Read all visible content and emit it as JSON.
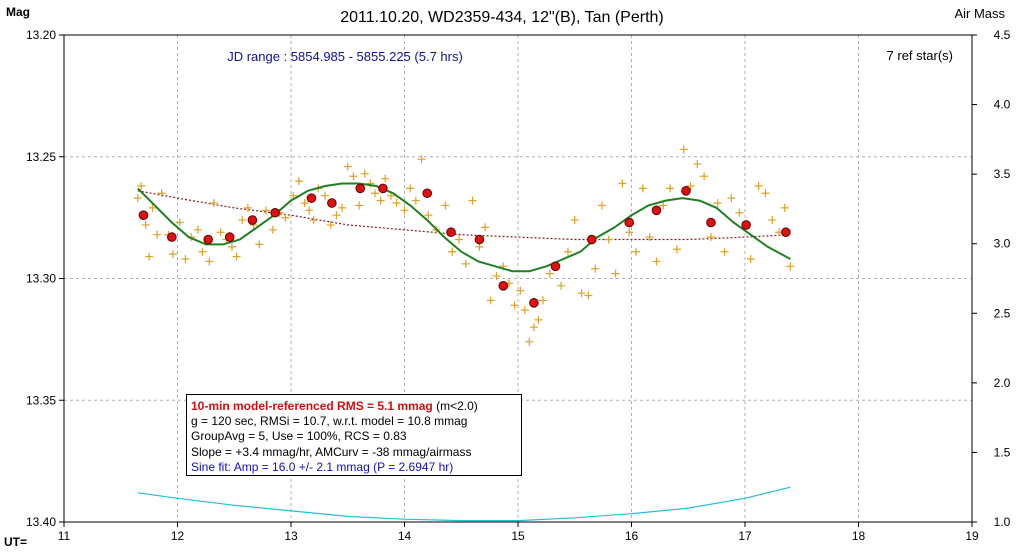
{
  "chart_data": {
    "type": "scatter",
    "title": "2011.10.20, WD2359-434, 12\"(B), Tan (Perth)",
    "ylabel_left": "Mag",
    "ylabel_right": "Air Mass",
    "xlabel": "UT=",
    "jd_range": "JD range : 5854.985 - 5855.225 (5.7 hrs)",
    "ref_stars": "7 ref star(s)",
    "xlim": [
      11,
      19
    ],
    "ylim": [
      13.4,
      13.2
    ],
    "y2lim": [
      1.0,
      4.5
    ],
    "x_ticks": [
      "11",
      "12",
      "13",
      "14",
      "15",
      "16",
      "17",
      "18",
      "19"
    ],
    "y_ticks": [
      "13.20",
      "13.25",
      "13.30",
      "13.35",
      "13.40"
    ],
    "y2_ticks": [
      "1.0",
      "1.5",
      "2.0",
      "2.5",
      "3.0",
      "3.5",
      "4.0",
      "4.5"
    ],
    "grid": true,
    "colors": {
      "raw": "#e0a020",
      "avg_fill": "#e01010",
      "avg_edge": "#600000",
      "sine": "#208020",
      "model": "#8b1a1a",
      "airmass": "#20c0d8",
      "grid": "#b0b0b0",
      "jd_text": "#1010a0"
    },
    "series": [
      {
        "name": "raw",
        "style": "plus",
        "x": [
          11.65,
          11.68,
          11.72,
          11.75,
          11.78,
          11.82,
          11.86,
          11.92,
          11.96,
          12.02,
          12.07,
          12.12,
          12.18,
          12.22,
          12.28,
          12.32,
          12.38,
          12.43,
          12.48,
          12.52,
          12.57,
          12.62,
          12.67,
          12.72,
          12.78,
          12.84,
          12.9,
          12.95,
          13.02,
          13.07,
          13.12,
          13.16,
          13.2,
          13.24,
          13.3,
          13.35,
          13.4,
          13.45,
          13.5,
          13.55,
          13.6,
          13.65,
          13.7,
          13.74,
          13.79,
          13.83,
          13.88,
          13.93,
          14.0,
          14.05,
          14.1,
          14.15,
          14.21,
          14.28,
          14.36,
          14.42,
          14.48,
          14.54,
          14.6,
          14.66,
          14.71,
          14.76,
          14.81,
          14.87,
          14.92,
          14.97,
          15.02,
          15.06,
          15.1,
          15.14,
          15.18,
          15.22,
          15.28,
          15.34,
          15.38,
          15.44,
          15.5,
          15.56,
          15.62,
          15.68,
          15.74,
          15.8,
          15.86,
          15.92,
          15.98,
          16.04,
          16.1,
          16.16,
          16.22,
          16.28,
          16.34,
          16.4,
          16.46,
          16.52,
          16.58,
          16.64,
          16.7,
          16.76,
          16.82,
          16.88,
          16.95,
          17.0,
          17.05,
          17.12,
          17.18,
          17.24,
          17.3,
          17.35,
          17.4
        ],
        "y": [
          13.267,
          13.262,
          13.278,
          13.291,
          13.271,
          13.282,
          13.265,
          13.282,
          13.29,
          13.277,
          13.292,
          13.283,
          13.28,
          13.289,
          13.293,
          13.269,
          13.281,
          13.284,
          13.287,
          13.291,
          13.276,
          13.271,
          13.278,
          13.286,
          13.272,
          13.28,
          13.273,
          13.275,
          13.266,
          13.26,
          13.269,
          13.272,
          13.276,
          13.263,
          13.266,
          13.278,
          13.274,
          13.271,
          13.254,
          13.258,
          13.27,
          13.257,
          13.261,
          13.265,
          13.268,
          13.259,
          13.266,
          13.269,
          13.272,
          13.263,
          13.268,
          13.251,
          13.274,
          13.28,
          13.27,
          13.289,
          13.284,
          13.294,
          13.268,
          13.287,
          13.279,
          13.309,
          13.299,
          13.295,
          13.302,
          13.311,
          13.305,
          13.313,
          13.326,
          13.32,
          13.317,
          13.309,
          13.298,
          13.295,
          13.303,
          13.289,
          13.276,
          13.306,
          13.307,
          13.296,
          13.27,
          13.284,
          13.298,
          13.261,
          13.281,
          13.289,
          13.263,
          13.283,
          13.293,
          13.27,
          13.263,
          13.288,
          13.247,
          13.262,
          13.253,
          13.258,
          13.283,
          13.269,
          13.289,
          13.267,
          13.273,
          13.279,
          13.292,
          13.262,
          13.265,
          13.276,
          13.281,
          13.271,
          13.295
        ]
      },
      {
        "name": "groupavg",
        "style": "filled-circle",
        "x": [
          11.7,
          11.95,
          12.27,
          12.46,
          12.66,
          12.86,
          13.18,
          13.36,
          13.61,
          13.81,
          14.2,
          14.41,
          14.66,
          14.87,
          15.14,
          15.33,
          15.65,
          15.98,
          16.22,
          16.48,
          16.7,
          17.01,
          17.36
        ],
        "y": [
          13.274,
          13.283,
          13.284,
          13.283,
          13.276,
          13.273,
          13.267,
          13.269,
          13.263,
          13.263,
          13.265,
          13.281,
          13.284,
          13.303,
          13.31,
          13.295,
          13.284,
          13.277,
          13.272,
          13.264,
          13.277,
          13.278,
          13.281
        ]
      },
      {
        "name": "sine-fit",
        "style": "line",
        "x": [
          11.65,
          11.8,
          11.95,
          12.1,
          12.25,
          12.4,
          12.55,
          12.7,
          12.85,
          13.0,
          13.15,
          13.3,
          13.45,
          13.6,
          13.75,
          13.9,
          14.05,
          14.2,
          14.35,
          14.5,
          14.65,
          14.8,
          14.95,
          15.1,
          15.25,
          15.4,
          15.55,
          15.7,
          15.85,
          16.0,
          16.15,
          16.3,
          16.45,
          16.6,
          16.75,
          16.9,
          17.05,
          17.2,
          17.4
        ],
        "y": [
          13.263,
          13.27,
          13.277,
          13.283,
          13.286,
          13.286,
          13.284,
          13.279,
          13.274,
          13.268,
          13.264,
          13.262,
          13.261,
          13.261,
          13.262,
          13.265,
          13.27,
          13.276,
          13.283,
          13.289,
          13.293,
          13.295,
          13.297,
          13.297,
          13.295,
          13.292,
          13.289,
          13.283,
          13.279,
          13.274,
          13.27,
          13.268,
          13.267,
          13.268,
          13.271,
          13.277,
          13.282,
          13.287,
          13.292
        ]
      },
      {
        "name": "model",
        "style": "dotted-line",
        "x": [
          11.65,
          12.0,
          12.5,
          13.0,
          13.5,
          14.0,
          14.5,
          15.0,
          15.5,
          16.0,
          16.5,
          17.0,
          17.4
        ],
        "y": [
          13.264,
          13.267,
          13.271,
          13.274,
          13.278,
          13.28,
          13.282,
          13.283,
          13.284,
          13.284,
          13.284,
          13.283,
          13.282
        ]
      },
      {
        "name": "airmass",
        "style": "line",
        "axis": "right",
        "x": [
          11.65,
          12.0,
          12.5,
          13.0,
          13.5,
          14.0,
          14.5,
          15.0,
          15.5,
          16.0,
          16.5,
          17.0,
          17.4
        ],
        "y": [
          1.21,
          1.17,
          1.12,
          1.08,
          1.04,
          1.02,
          1.01,
          1.01,
          1.03,
          1.06,
          1.1,
          1.17,
          1.25
        ]
      }
    ]
  },
  "stats_box": {
    "line1_bold": "10-min model-referenced RMS = 5.1 mmag",
    "line1_rest": " (m<2.0)",
    "line2": "g = 120 sec, RMSi = 10.7, w.r.t. model = 10.8  mmag",
    "line3": "GroupAvg  = 5, Use = 100%, RCS = 0.83",
    "line4": "Slope = +3.4 mmag/hr,  AMCurv  = -38 mmag/airmass",
    "line5": "Sine fit: Amp = 16.0 +/- 2.1 mmag (P = 2.6947 hr)"
  }
}
